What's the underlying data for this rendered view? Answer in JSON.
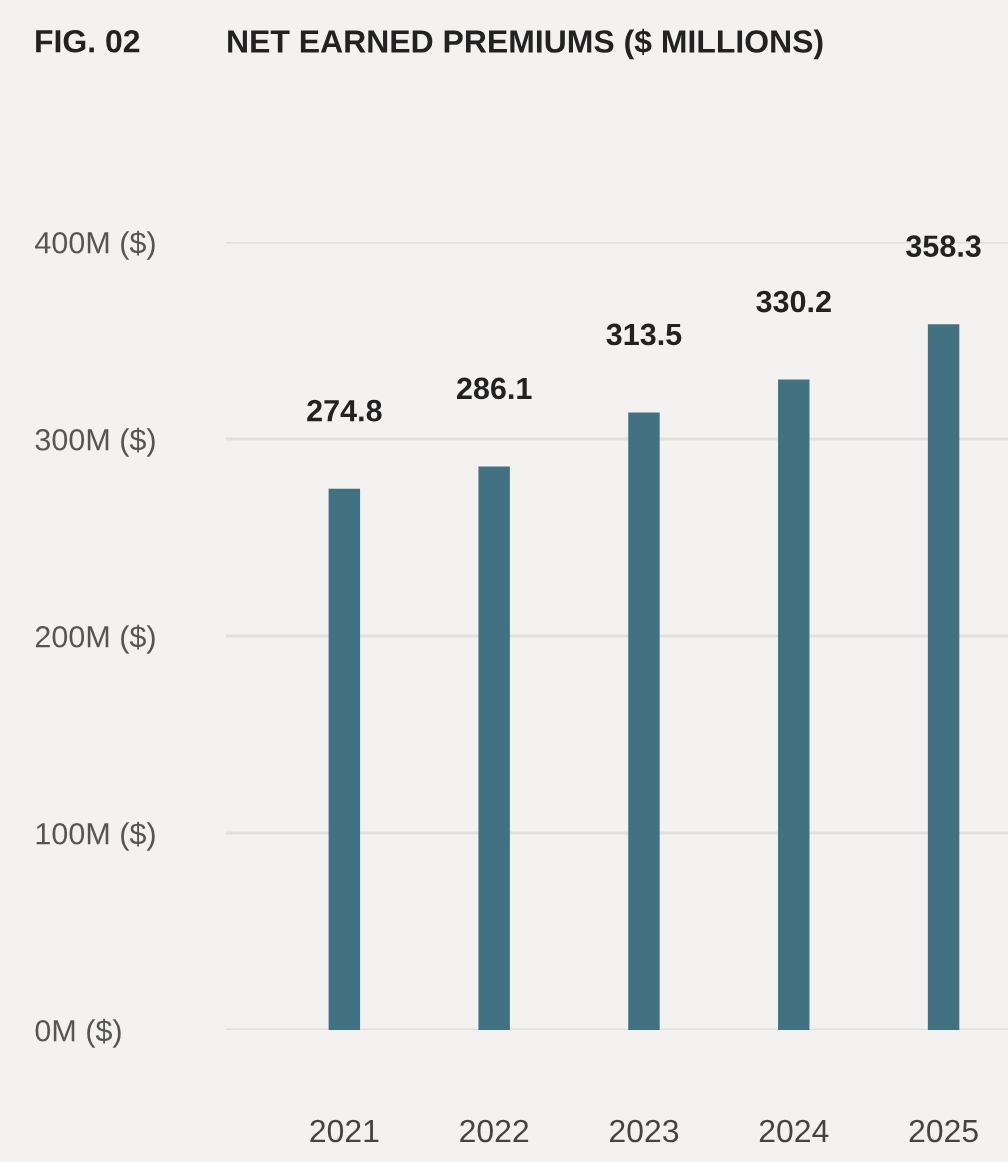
{
  "chart_data": {
    "type": "bar",
    "title": "NET EARNED PREMIUMS ($ MILLIONS)",
    "annotations": [
      "FIG. 02"
    ],
    "categories": [
      "2021",
      "2022",
      "2023",
      "2024",
      "2025"
    ],
    "series": [
      {
        "color": "#427282",
        "values": [
          274.8,
          286.1,
          313.5,
          330.2,
          358.3
        ]
      }
    ],
    "ylim": [
      0,
      400
    ],
    "yticks": [
      {
        "value": 0,
        "label": "0M ($)"
      },
      {
        "value": 100,
        "label": "100M ($)"
      },
      {
        "value": 200,
        "label": "200M ($)"
      },
      {
        "value": 300,
        "label": "300M ($)"
      },
      {
        "value": 400,
        "label": "400M ($)"
      }
    ],
    "grid": "y",
    "data_labels": true
  }
}
